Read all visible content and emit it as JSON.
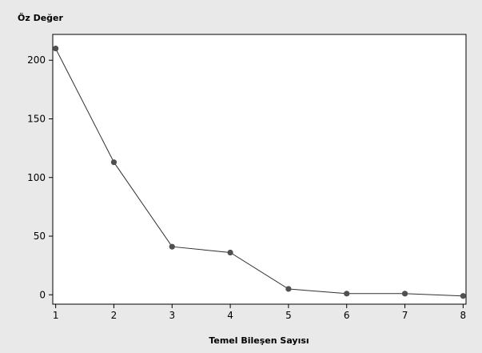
{
  "chart_data": {
    "type": "line",
    "xlabel": "Temel Bileşen Sayısı",
    "ylabel": "Öz Değer",
    "x": [
      1,
      2,
      3,
      4,
      5,
      6,
      7,
      8
    ],
    "series": [
      {
        "values": [
          210,
          113,
          41,
          36,
          5,
          1,
          1,
          -1
        ]
      }
    ],
    "xlim": [
      0.95,
      8.05
    ],
    "ylim": [
      -8,
      222
    ],
    "xticks": [
      1,
      2,
      3,
      4,
      5,
      6,
      7,
      8
    ],
    "yticks": [
      0,
      50,
      100,
      150,
      200
    ],
    "grid": false,
    "colors": {
      "background": "#e9e9e9",
      "plot_area": "#ffffff",
      "frame": "#000000",
      "line": "#303030",
      "marker": "#505050"
    }
  }
}
